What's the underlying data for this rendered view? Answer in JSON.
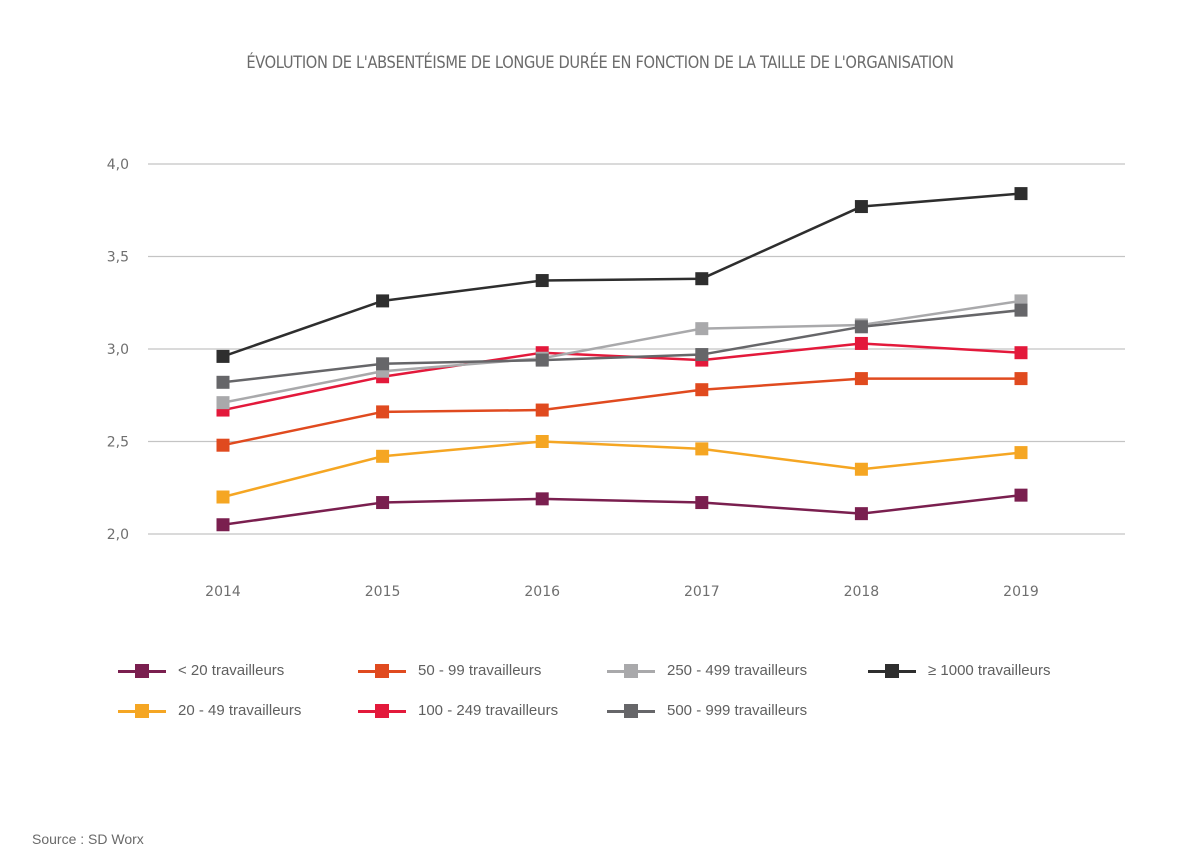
{
  "chart_data": {
    "type": "line",
    "title": "ÉVOLUTION DE L'ABSENTÉISME DE LONGUE DURÉE EN FONCTION DE LA TAILLE DE L'ORGANISATION",
    "xlabel": "",
    "ylabel": "",
    "x": [
      "2014",
      "2015",
      "2016",
      "2017",
      "2018",
      "2019"
    ],
    "ylim": [
      2.0,
      4.0
    ],
    "yticks": [
      2.0,
      2.5,
      3.0,
      3.5,
      4.0
    ],
    "ytick_labels": [
      "2,0",
      "2,5",
      "3,0",
      "3,5",
      "4,0"
    ],
    "grid": "horizontal",
    "marker": "square",
    "legend_position": "bottom",
    "series": [
      {
        "name": "< 20 travailleurs",
        "color": "#7a1f4f",
        "values": [
          2.05,
          2.17,
          2.19,
          2.17,
          2.11,
          2.21
        ]
      },
      {
        "name": "20 - 49 travailleurs",
        "color": "#f5a623",
        "values": [
          2.2,
          2.42,
          2.5,
          2.46,
          2.35,
          2.44
        ]
      },
      {
        "name": "50 - 99 travailleurs",
        "color": "#e04a1f",
        "values": [
          2.48,
          2.66,
          2.67,
          2.78,
          2.84,
          2.84
        ]
      },
      {
        "name": "100 - 249 travailleurs",
        "color": "#e3193b",
        "values": [
          2.67,
          2.85,
          2.98,
          2.94,
          3.03,
          2.98
        ]
      },
      {
        "name": "250 - 499 travailleurs",
        "color": "#a9a9ab",
        "values": [
          2.71,
          2.88,
          2.95,
          3.11,
          3.13,
          3.26
        ]
      },
      {
        "name": "500 - 999 travailleurs",
        "color": "#666669",
        "values": [
          2.82,
          2.92,
          2.94,
          2.97,
          3.12,
          3.21
        ]
      },
      {
        "name": "≥ 1000 travailleurs",
        "color": "#2e2e2e",
        "values": [
          2.96,
          3.26,
          3.37,
          3.38,
          3.77,
          3.84
        ]
      }
    ]
  },
  "source": "Source : SD Worx"
}
